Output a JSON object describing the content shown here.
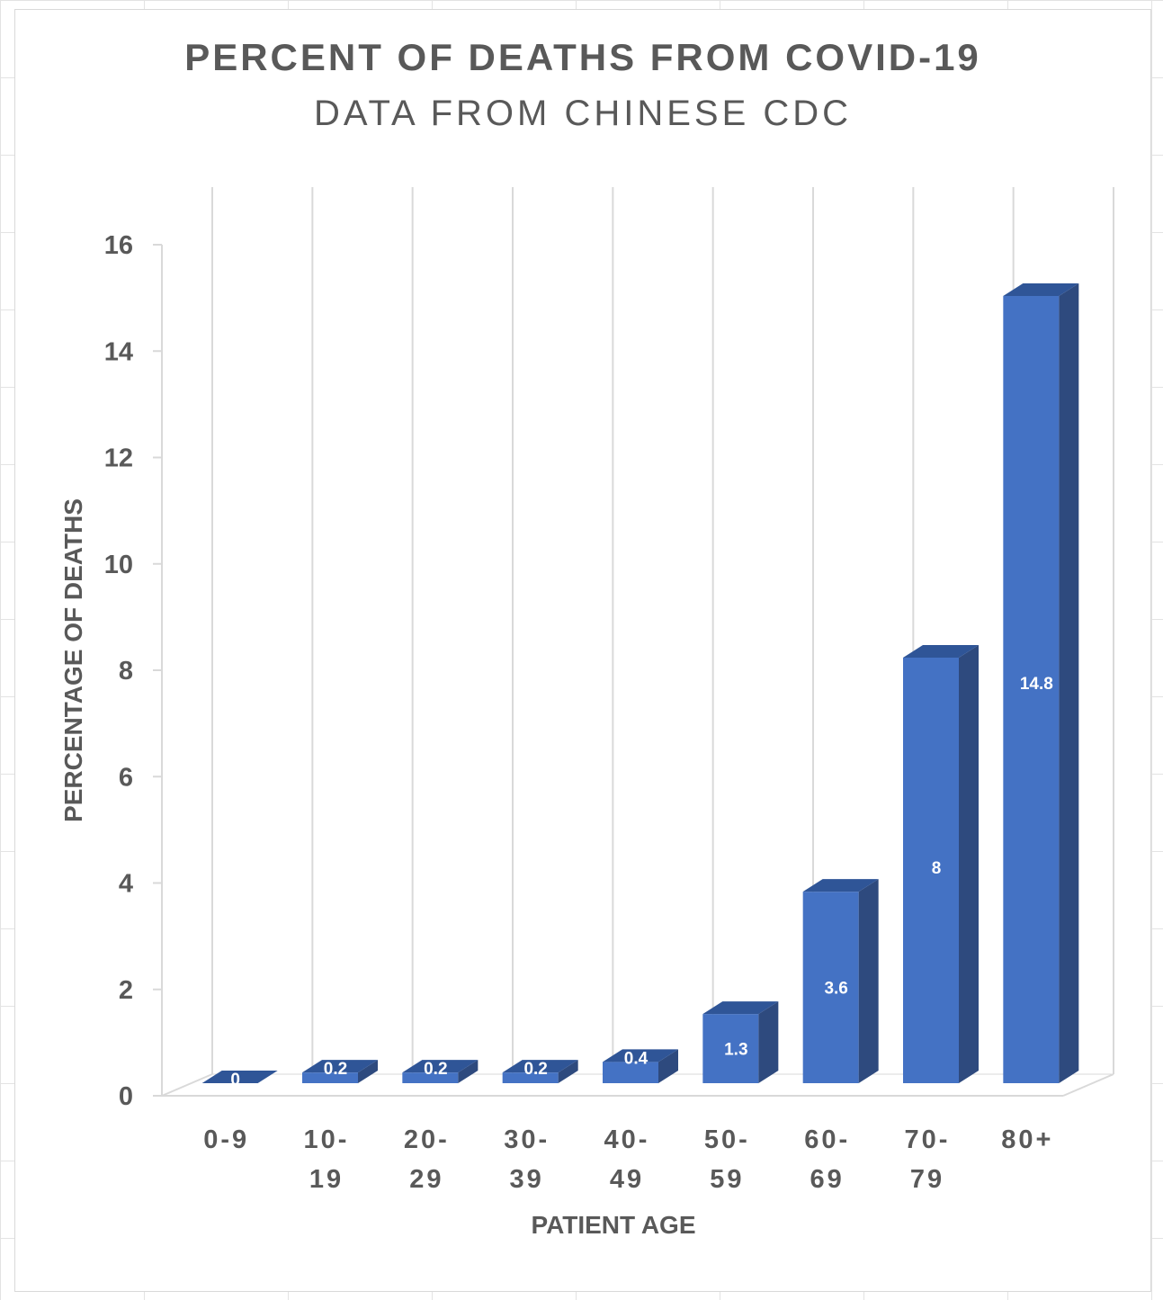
{
  "chart_data": {
    "type": "bar",
    "title": "PERCENT OF DEATHS FROM COVID-19",
    "subtitle": "DATA FROM CHINESE CDC",
    "xlabel": "PATIENT AGE",
    "ylabel": "PERCENTAGE OF DEATHS",
    "categories": [
      [
        "0-9"
      ],
      [
        "10-",
        "19"
      ],
      [
        "20-",
        "29"
      ],
      [
        "30-",
        "39"
      ],
      [
        "40-",
        "49"
      ],
      [
        "50-",
        "59"
      ],
      [
        "60-",
        "69"
      ],
      [
        "70-",
        "79"
      ],
      [
        "80+"
      ]
    ],
    "values": [
      0,
      0.2,
      0.2,
      0.2,
      0.4,
      1.3,
      3.6,
      8,
      14.8
    ],
    "data_labels": [
      "0",
      "0.2",
      "0.2",
      "0.2",
      "0.4",
      "1.3",
      "3.6",
      "8",
      "14.8"
    ],
    "ylim": [
      0,
      16
    ],
    "yticks": [
      "0",
      "2",
      "4",
      "6",
      "8",
      "10",
      "12",
      "14",
      "16"
    ],
    "grid": true,
    "legend": "none",
    "style": "3d-column",
    "colors": {
      "bar_front": "#4472c4",
      "bar_side": "#2e4a7e",
      "bar_top": "#2f5597",
      "text": "#595959",
      "grid": "#d9d9d9"
    }
  }
}
